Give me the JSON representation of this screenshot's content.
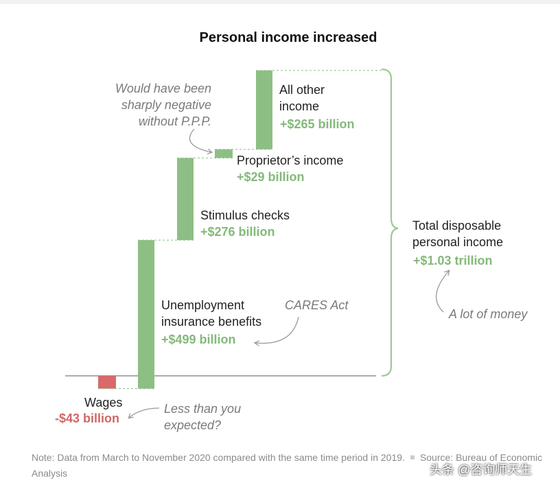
{
  "chart_data": {
    "type": "bar",
    "subtype": "waterfall",
    "title": "Personal income increased",
    "unit": "billion USD",
    "steps": [
      {
        "key": "wages",
        "label": "Wages",
        "value_label": "-$43 billion",
        "value": -43
      },
      {
        "key": "unemployment",
        "label": "Unemployment insurance benefits",
        "label_lines": [
          "Unemployment",
          "insurance benefits"
        ],
        "value_label": "+$499 billion",
        "value": 499
      },
      {
        "key": "stimulus",
        "label": "Stimulus checks",
        "value_label": "+$276 billion",
        "value": 276
      },
      {
        "key": "proprietor",
        "label": "Proprietor’s income",
        "value_label": "+$29 billion",
        "value": 29
      },
      {
        "key": "other",
        "label": "All other income",
        "label_lines": [
          "All other",
          "income"
        ],
        "value_label": "+$265 billion",
        "value": 265
      }
    ],
    "total": {
      "label_lines": [
        "Total disposable",
        "personal income"
      ],
      "value_label": "+$1.03 trillion",
      "value": 1030
    },
    "annotations": {
      "ppp": [
        "Would have been",
        "sharply negative",
        "without P.P.P."
      ],
      "cares": "CARES Act",
      "less": [
        "Less than you",
        "expected?"
      ],
      "money": "A lot of money"
    },
    "colors": {
      "positive": "#8dbf84",
      "negative": "#d9696a",
      "text_positive": "#84b97a",
      "text_negative": "#cf6766",
      "bracket": "#9ccb92"
    }
  },
  "note": {
    "text": "Note: Data from March to November 2020 compared with the same time period in 2019.",
    "source": "Source: Bureau of Economic Analysis"
  },
  "watermark": "头条 @咨询师天生"
}
